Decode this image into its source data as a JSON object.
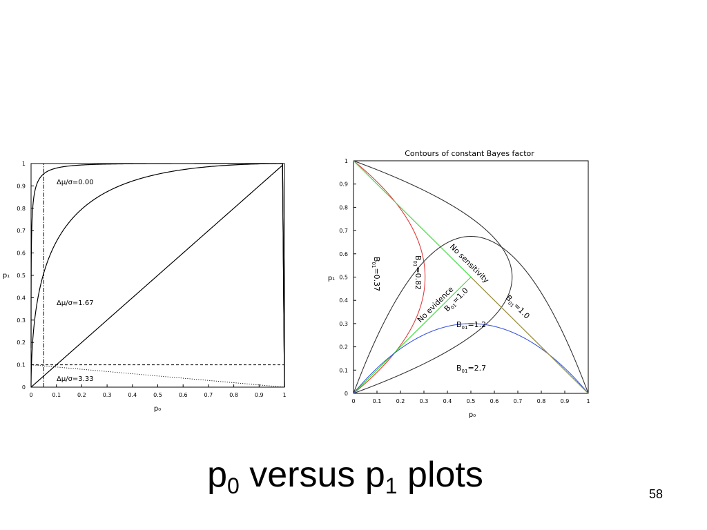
{
  "slide": {
    "title": {
      "main": "p",
      "sub0": "0",
      "mid": " versus p",
      "sub1": "1",
      "end": " plots"
    },
    "page_number": "58"
  },
  "chart_data": [
    {
      "type": "line",
      "title": "",
      "xlabel": "p₀",
      "ylabel": "p₁",
      "xlim": [
        0,
        1
      ],
      "ylim": [
        0,
        1
      ],
      "xticks": [
        "0",
        "0.1",
        "0.2",
        "0.3",
        "0.4",
        "0.5",
        "0.6",
        "0.7",
        "0.8",
        "0.9",
        "1"
      ],
      "yticks": [
        "0",
        "0.1",
        "0.2",
        "0.3",
        "0.4",
        "0.5",
        "0.6",
        "0.7",
        "0.8",
        "0.9",
        "1"
      ],
      "colors": {
        "curves": "#000000"
      },
      "reference_lines": [
        {
          "orientation": "vertical",
          "value": 0.05,
          "style": "dash-dot"
        },
        {
          "orientation": "horizontal",
          "value": 0.1,
          "style": "dashed"
        }
      ],
      "series": [
        {
          "label": "Δμ/σ=0.00",
          "separation": 0.0,
          "style": "solid"
        },
        {
          "label": "Δμ/σ=1.67",
          "separation": 1.67,
          "style": "solid"
        },
        {
          "label": "Δμ/σ=3.33",
          "separation": 3.33,
          "style": "solid"
        },
        {
          "label": "",
          "style": "dotted",
          "x": [
            0.0,
            1.0
          ],
          "y": [
            0.1,
            0.0
          ]
        }
      ]
    },
    {
      "type": "line",
      "title": "Contours of constant Bayes factor",
      "xlabel": "p₀",
      "ylabel": "p₁",
      "xlim": [
        0,
        1
      ],
      "ylim": [
        0,
        1
      ],
      "xticks": [
        "0",
        "0.1",
        "0.2",
        "0.3",
        "0.4",
        "0.5",
        "0.6",
        "0.7",
        "0.8",
        "0.9",
        "1"
      ],
      "yticks": [
        "0",
        "0.1",
        "0.2",
        "0.3",
        "0.4",
        "0.5",
        "0.6",
        "0.7",
        "0.8",
        "0.9",
        "1"
      ],
      "series": [
        {
          "label_main": "B",
          "label_sub": "01",
          "label_val": "=0.37",
          "bayes_factor": 0.37,
          "color": "#333333"
        },
        {
          "label_main": "B",
          "label_sub": "01",
          "label_val": "=0.82",
          "bayes_factor": 0.82,
          "color": "#e23a3a"
        },
        {
          "label_main": "B",
          "label_sub": "01",
          "label_val": "=1.0",
          "bayes_factor": 1.0,
          "color": "#3ee03e"
        },
        {
          "label_main": "B",
          "label_sub": "01",
          "label_val": "=1.2",
          "bayes_factor": 1.2,
          "color": "#3a55dd"
        },
        {
          "label_main": "B",
          "label_sub": "01",
          "label_val": "=2.7",
          "bayes_factor": 2.7,
          "color": "#333333"
        }
      ],
      "annotations": {
        "no_sensitivity": "No sensitivity",
        "no_evidence": "No evidence"
      },
      "overlay_color": "#a08a40"
    }
  ]
}
